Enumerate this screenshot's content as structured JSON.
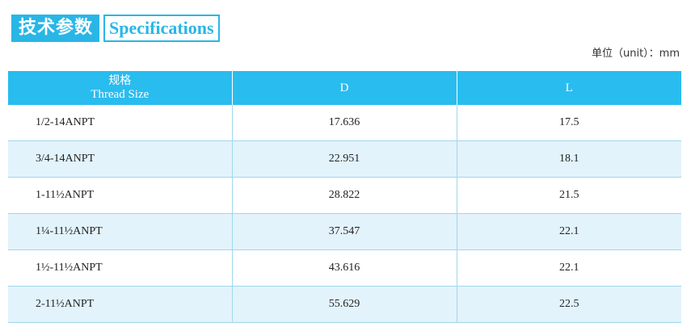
{
  "header": {
    "title_cn": "技术参数",
    "title_en": "Specifications",
    "unit_note": "单位（unit）：mm"
  },
  "table": {
    "columns": [
      {
        "cn": "规格",
        "en": "Thread Size"
      },
      {
        "en": "D"
      },
      {
        "en": "L"
      }
    ],
    "rows": [
      {
        "size": "1/2-14ANPT",
        "d": "17.636",
        "l": "17.5"
      },
      {
        "size": "3/4-14ANPT",
        "d": "22.951",
        "l": "18.1"
      },
      {
        "size": "1-11½ANPT",
        "d": "28.822",
        "l": "21.5"
      },
      {
        "size": "1¼-11½ANPT",
        "d": "37.547",
        "l": "22.1"
      },
      {
        "size": "1½-11½ANPT",
        "d": "43.616",
        "l": "22.1"
      },
      {
        "size": "2-11½ANPT",
        "d": "55.629",
        "l": "22.5"
      }
    ]
  },
  "colors": {
    "accent": "#29b6e6",
    "header_bg": "#29bcef",
    "alt_row_bg": "#e3f3fb"
  }
}
